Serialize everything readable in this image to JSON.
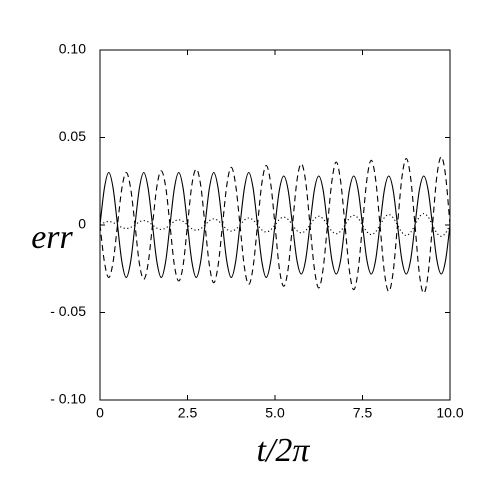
{
  "chart_data": {
    "type": "line",
    "xlabel": "t/2π",
    "ylabel": "err",
    "x": [
      0,
      0.125,
      0.25,
      0.375,
      0.5,
      0.625,
      0.75,
      0.875,
      1,
      1.125,
      1.25,
      1.375,
      1.5,
      1.625,
      1.75,
      1.875,
      2,
      2.125,
      2.25,
      2.375,
      2.5,
      2.625,
      2.75,
      2.875,
      3,
      3.125,
      3.25,
      3.375,
      3.5,
      3.625,
      3.75,
      3.875,
      4,
      4.125,
      4.25,
      4.375,
      4.5,
      4.625,
      4.75,
      4.875,
      5,
      5.125,
      5.25,
      5.375,
      5.5,
      5.625,
      5.75,
      5.875,
      6,
      6.125,
      6.25,
      6.375,
      6.5,
      6.625,
      6.75,
      6.875,
      7,
      7.125,
      7.25,
      7.375,
      7.5,
      7.625,
      7.75,
      7.875,
      8,
      8.125,
      8.25,
      8.375,
      8.5,
      8.625,
      8.75,
      8.875,
      9,
      9.125,
      9.25,
      9.375,
      9.5,
      9.625,
      9.75,
      9.875,
      10
    ],
    "series": [
      {
        "style": "solid",
        "color": "#000000",
        "values": [
          0,
          0.021,
          0.03,
          0.021,
          0,
          -0.021,
          -0.03,
          -0.021,
          0,
          0.021,
          0.03,
          0.021,
          0,
          -0.021,
          -0.03,
          -0.021,
          0,
          0.021,
          0.03,
          0.021,
          0,
          -0.021,
          -0.03,
          -0.021,
          0,
          0.021,
          0.03,
          0.021,
          0,
          -0.021,
          -0.03,
          -0.021,
          0,
          0.021,
          0.03,
          0.021,
          0,
          -0.021,
          -0.03,
          -0.021,
          0,
          0.02,
          0.028,
          0.02,
          0,
          -0.02,
          -0.028,
          -0.02,
          0,
          0.02,
          0.028,
          0.02,
          0,
          -0.02,
          -0.028,
          -0.02,
          0,
          0.02,
          0.028,
          0.02,
          0,
          -0.02,
          -0.028,
          -0.02,
          0,
          0.02,
          0.028,
          0.02,
          0,
          -0.02,
          -0.028,
          -0.02,
          0,
          0.02,
          0.028,
          0.02,
          0,
          -0.02,
          -0.028,
          -0.02,
          0
        ]
      },
      {
        "style": "dashed",
        "color": "#000000",
        "values": [
          0,
          -0.021,
          -0.03,
          -0.021,
          0,
          0.021,
          0.03,
          0.021,
          0,
          -0.022,
          -0.031,
          -0.022,
          0,
          0.022,
          0.031,
          0.022,
          0,
          -0.023,
          -0.032,
          -0.023,
          0,
          0.023,
          0.032,
          0.023,
          0,
          -0.023,
          -0.033,
          -0.023,
          0,
          0.023,
          0.033,
          0.023,
          0,
          -0.024,
          -0.034,
          -0.024,
          0,
          0.024,
          0.034,
          0.024,
          0,
          -0.025,
          -0.035,
          -0.025,
          0,
          0.025,
          0.035,
          0.025,
          0,
          -0.025,
          -0.036,
          -0.025,
          0,
          0.025,
          0.036,
          0.025,
          0,
          -0.026,
          -0.037,
          -0.026,
          0,
          0.026,
          0.037,
          0.026,
          0,
          -0.027,
          -0.038,
          -0.027,
          0,
          0.027,
          0.038,
          0.027,
          0,
          -0.028,
          -0.039,
          -0.028,
          0,
          0.028,
          0.039,
          0.028,
          0
        ]
      },
      {
        "style": "dotted",
        "color": "#000000",
        "values": [
          0,
          0.0014,
          0.002,
          0.0014,
          0,
          -0.0014,
          -0.002,
          -0.0014,
          0,
          0.0018,
          0.0025,
          0.0018,
          0,
          -0.0018,
          -0.0025,
          -0.0018,
          0,
          0.0021,
          0.003,
          0.0021,
          0,
          -0.0021,
          -0.003,
          -0.0021,
          0,
          0.0025,
          0.0035,
          0.0025,
          0,
          -0.0025,
          -0.0035,
          -0.0025,
          0,
          0.0028,
          0.004,
          0.0028,
          0,
          -0.0028,
          -0.004,
          -0.0028,
          0,
          0.0032,
          0.0045,
          0.0032,
          0,
          -0.0032,
          -0.0045,
          -0.0032,
          0,
          0.0035,
          0.005,
          0.0035,
          0,
          -0.0035,
          -0.005,
          -0.0035,
          0,
          0.0039,
          0.0055,
          0.0039,
          0,
          -0.0039,
          -0.0055,
          -0.0039,
          0,
          0.0042,
          0.006,
          0.0042,
          0,
          -0.0042,
          -0.006,
          -0.0042,
          0,
          0.0046,
          0.0065,
          0.0046,
          0,
          -0.0046,
          -0.0065,
          -0.0046,
          0
        ]
      }
    ],
    "xlim": [
      0,
      10
    ],
    "xticks": [
      0,
      2.5,
      {
        "value": 5,
        "label": "5.0"
      },
      7.5,
      {
        "value": 10,
        "label": "10.0"
      }
    ],
    "ylim": [
      -0.1,
      0.1
    ],
    "yticks": [
      {
        "value": -0.1,
        "label": "- 0.10"
      },
      {
        "value": -0.05,
        "label": "- 0.05"
      },
      0,
      0.05,
      {
        "value": 0.1,
        "label": "0.10"
      }
    ],
    "grid": false
  }
}
